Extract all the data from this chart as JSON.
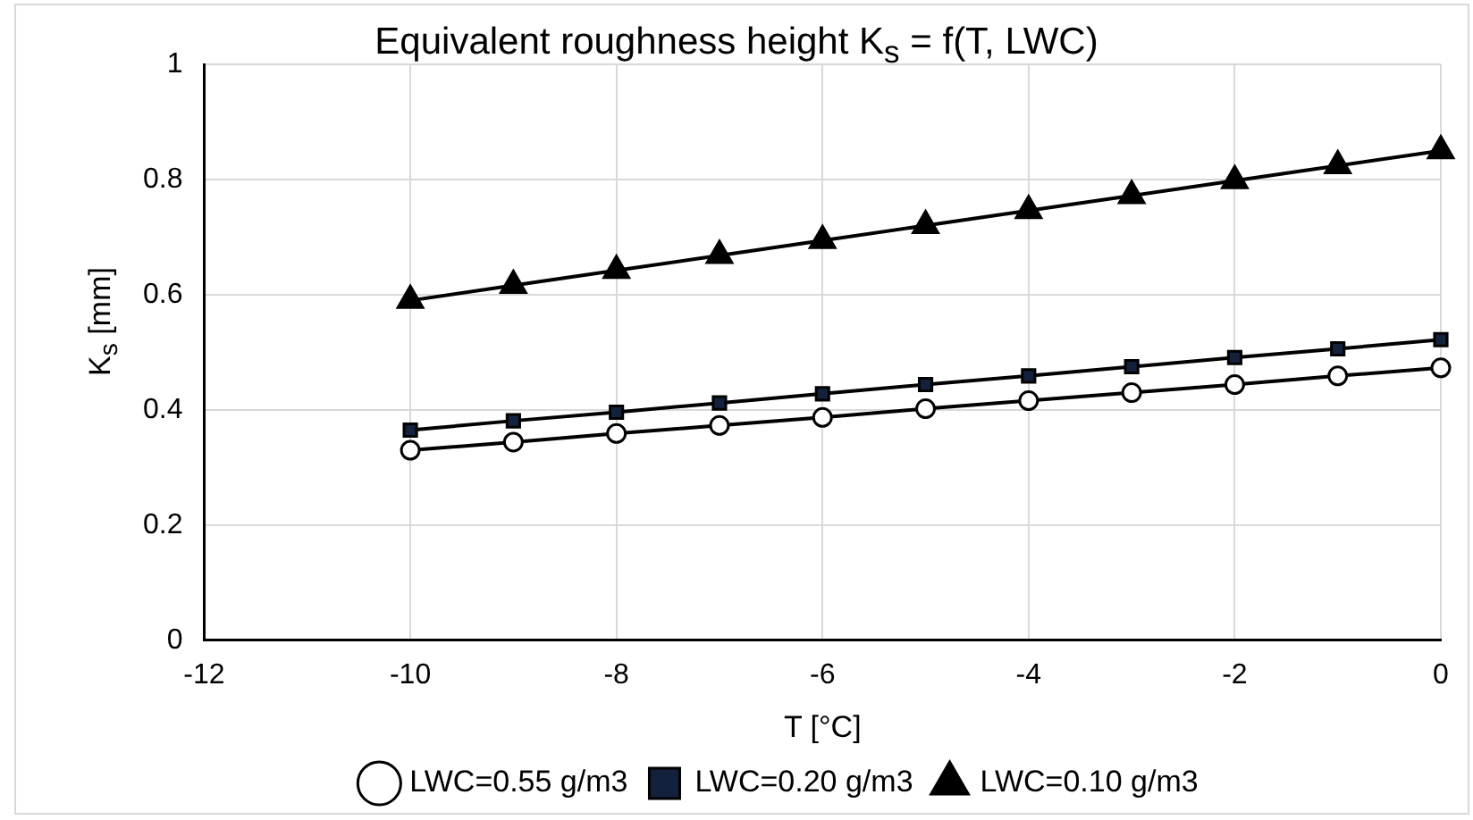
{
  "chart_data": {
    "type": "line",
    "title": "Equivalent roughness height K$_{s}$ = f(T, LWC)",
    "xlabel": "T [°C]",
    "ylabel": "K$_{s}$ [mm]",
    "x": [
      -10,
      -9,
      -8,
      -7,
      -6,
      -5,
      -4,
      -3,
      -2,
      -1,
      0
    ],
    "xlim": [
      -12,
      0
    ],
    "xticks": [
      -12,
      -10,
      -8,
      -6,
      -4,
      -2,
      0
    ],
    "ylim": [
      0,
      1
    ],
    "yticks": [
      0,
      0.2,
      0.4,
      0.6,
      0.8,
      1
    ],
    "grid": true,
    "legend": "bottom",
    "line_style": "solid",
    "series": [
      {
        "name": "LWC=0.55 g/m3",
        "color": "#000000",
        "marker": "circle",
        "values": [
          0.33,
          0.344,
          0.359,
          0.373,
          0.387,
          0.402,
          0.416,
          0.43,
          0.444,
          0.459,
          0.473
        ]
      },
      {
        "name": "LWC=0.20 g/m3",
        "color": "#14213d",
        "marker": "square",
        "values": [
          0.365,
          0.381,
          0.396,
          0.412,
          0.428,
          0.444,
          0.459,
          0.475,
          0.491,
          0.506,
          0.522
        ]
      },
      {
        "name": "LWC=0.10 g/m3",
        "color": "#000000",
        "marker": "triangle",
        "values": [
          0.59,
          0.616,
          0.642,
          0.668,
          0.694,
          0.72,
          0.746,
          0.772,
          0.798,
          0.824,
          0.85
        ]
      }
    ]
  }
}
